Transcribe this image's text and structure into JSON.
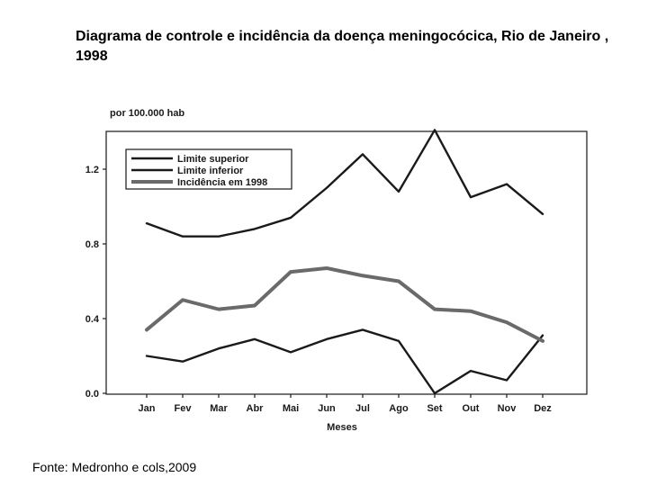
{
  "slide": {
    "title": "Diagrama de controle e incidência da doença meningocócica, Rio de Janeiro , 1998",
    "source": "Fonte: Medronho e cols,2009"
  },
  "chart_data": {
    "type": "line",
    "title": "Diagrama de controle e incidência da doença meningocócica, Rio de Janeiro , 1998",
    "ylabel": "por 100.000 hab",
    "xlabel": "Meses",
    "categories": [
      "Jan",
      "Fev",
      "Mar",
      "Abr",
      "Mai",
      "Jun",
      "Jul",
      "Ago",
      "Set",
      "Out",
      "Nov",
      "Dez"
    ],
    "ylim": [
      0,
      1.4
    ],
    "yticks": [
      0.0,
      0.4,
      0.8,
      1.2
    ],
    "ytick_labels": [
      "0.0",
      "0.4",
      "0.8",
      "1.2"
    ],
    "legend_position": "top-left",
    "series": [
      {
        "name": "Limite superior",
        "color": "#1a1a1a",
        "values": [
          0.91,
          0.84,
          0.84,
          0.88,
          0.94,
          1.1,
          1.28,
          1.08,
          1.41,
          1.05,
          1.12,
          0.96
        ]
      },
      {
        "name": "Limite inferior",
        "color": "#1a1a1a",
        "values": [
          0.2,
          0.17,
          0.24,
          0.29,
          0.22,
          0.29,
          0.34,
          0.28,
          0.0,
          0.12,
          0.07,
          0.31
        ]
      },
      {
        "name": "Incidência em 1998",
        "color": "#6a6a6a",
        "values": [
          0.34,
          0.5,
          0.45,
          0.47,
          0.65,
          0.67,
          0.63,
          0.6,
          0.45,
          0.44,
          0.38,
          0.28
        ]
      }
    ]
  }
}
